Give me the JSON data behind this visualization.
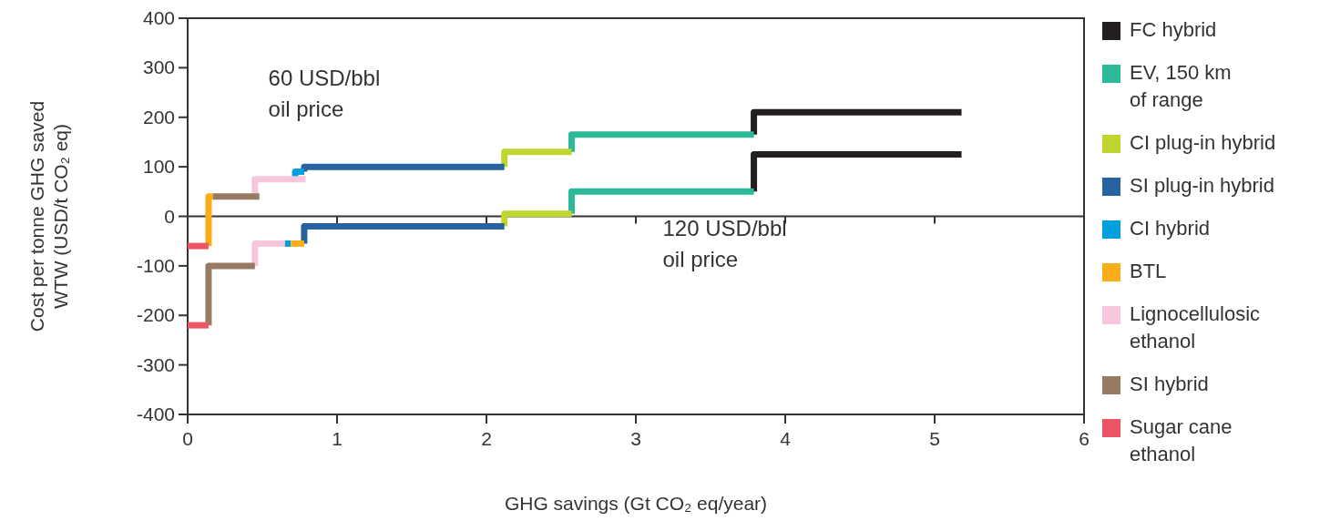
{
  "chart_data": {
    "type": "line",
    "xlabel": "GHG savings (Gt CO₂ eq/year)",
    "ylabel": "Cost per tonne GHG saved\nWTW (USD/t CO₂ eq)",
    "xlim": [
      0,
      6
    ],
    "xticks": [
      0,
      1,
      2,
      3,
      4,
      5,
      6
    ],
    "ylim": [
      -400,
      400
    ],
    "yticks": [
      -400,
      -300,
      -200,
      -100,
      0,
      100,
      200,
      300,
      400
    ],
    "grid": false,
    "legend": "right",
    "marker": "none",
    "line_style": "solid",
    "ref_lines": [
      {
        "axis": "y",
        "value": 0
      }
    ],
    "annotations": [
      "60 USD/bbl\noil price",
      "120 USD/bbl\noil price"
    ],
    "series": [
      {
        "name": "FC hybrid",
        "color": "#231f20",
        "x": [
          3.79,
          3.79,
          5.18
        ],
        "values": [
          165,
          210,
          210
        ]
      },
      {
        "name": "EV, 150 km\nof range",
        "color": "#2bb99a",
        "x": [
          2.57,
          2.57,
          3.79
        ],
        "values": [
          130,
          165,
          165
        ]
      },
      {
        "name": "CI plug-in hybrid",
        "color": "#c0d62e",
        "x": [
          2.12,
          2.12,
          2.57
        ],
        "values": [
          100,
          130,
          130
        ]
      },
      {
        "name": "SI plug-in hybrid",
        "color": "#2763a0",
        "x": [
          0.78,
          0.78,
          2.12
        ],
        "values": [
          90,
          100,
          100
        ]
      },
      {
        "name": "CI hybrid",
        "color": "#009fe0",
        "x": [
          0.72,
          0.72,
          0.78
        ],
        "values": [
          75,
          90,
          90
        ]
      },
      {
        "name": "BTL",
        "color": "#fbad18",
        "x": [
          0.14,
          0.14,
          0.17
        ],
        "values": [
          -60,
          40,
          40
        ]
      },
      {
        "name": "Lignocellulosic\nethanol",
        "color": "#f8c6dc",
        "x": [
          0.45,
          0.45,
          0.79
        ],
        "values": [
          40,
          75,
          75
        ]
      },
      {
        "name": "SI hybrid",
        "color": "#977a62",
        "x": [
          0.17,
          0.48
        ],
        "values": [
          40,
          40
        ]
      },
      {
        "name": "Sugar cane\nethanol",
        "color": "#ed5565",
        "x": [
          0,
          0.14
        ],
        "values": [
          -60,
          -60
        ]
      },
      {
        "color": "#231f20",
        "x": [
          3.79,
          3.79,
          5.18
        ],
        "values": [
          50,
          125,
          125
        ]
      },
      {
        "color": "#2bb99a",
        "x": [
          2.57,
          2.57,
          3.79
        ],
        "values": [
          5,
          50,
          50
        ]
      },
      {
        "color": "#c0d62e",
        "x": [
          2.12,
          2.12,
          2.57
        ],
        "values": [
          -20,
          5,
          5
        ]
      },
      {
        "color": "#2763a0",
        "x": [
          0.78,
          0.78,
          2.12
        ],
        "values": [
          -55,
          -20,
          -20
        ]
      },
      {
        "color": "#009fe0",
        "x": [
          0.65,
          0.69
        ],
        "values": [
          -55,
          -55
        ]
      },
      {
        "color": "#fbad18",
        "x": [
          0.69,
          0.78
        ],
        "values": [
          -55,
          -55
        ]
      },
      {
        "color": "#f8c6dc",
        "x": [
          0.45,
          0.45,
          0.65
        ],
        "values": [
          -100,
          -55,
          -55
        ]
      },
      {
        "color": "#977a62",
        "x": [
          0.14,
          0.14,
          0.45
        ],
        "values": [
          -220,
          -100,
          -100
        ]
      },
      {
        "color": "#ed5565",
        "x": [
          0,
          0.14
        ],
        "values": [
          -220,
          -220
        ]
      }
    ]
  }
}
